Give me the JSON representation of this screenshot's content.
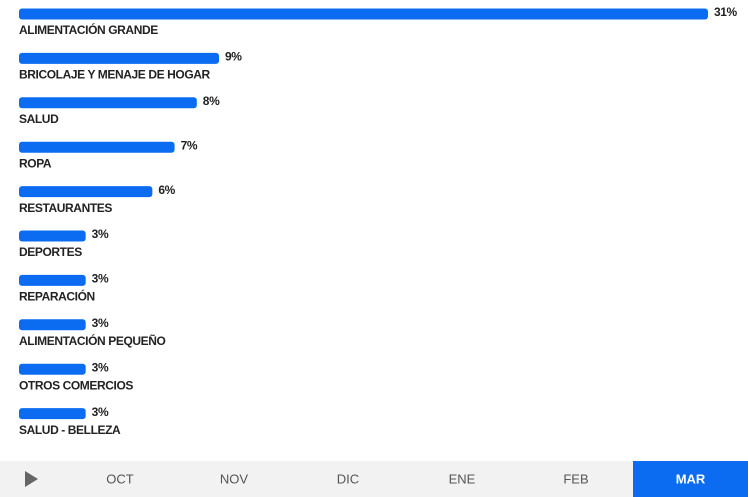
{
  "chart_data": {
    "type": "bar",
    "orientation": "horizontal",
    "categories": [
      "ALIMENTACIÓN GRANDE",
      "BRICOLAJE Y MENAJE DE HOGAR",
      "SALUD",
      "ROPA",
      "RESTAURANTES",
      "DEPORTES",
      "REPARACIÓN",
      "ALIMENTACIÓN PEQUEÑO",
      "OTROS COMERCIOS",
      "SALUD - BELLEZA"
    ],
    "values": [
      31,
      9,
      8,
      7,
      6,
      3,
      3,
      3,
      3,
      3
    ],
    "value_labels": [
      "31%",
      "9%",
      "8%",
      "7%",
      "6%",
      "3%",
      "3%",
      "3%",
      "3%",
      "3%"
    ],
    "color": "#0b6cf2"
  },
  "tabs": {
    "items": [
      "OCT",
      "NOV",
      "DIC",
      "ENE",
      "FEB",
      "MAR"
    ],
    "selected": 5,
    "selected_color": "#0b6cf2"
  }
}
